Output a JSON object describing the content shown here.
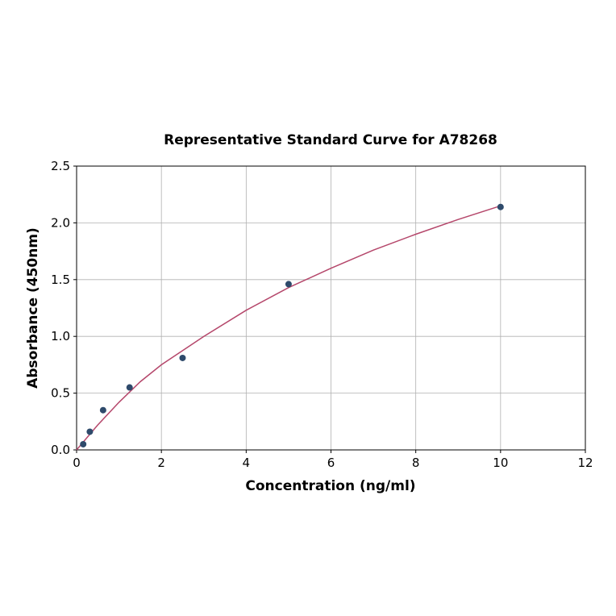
{
  "chart_data": {
    "type": "scatter",
    "title": "Representative Standard Curve for A78268",
    "xlabel": "Concentration (ng/ml)",
    "ylabel": "Absorbance (450nm)",
    "xlim": [
      0,
      12
    ],
    "ylim": [
      0,
      2.5
    ],
    "xticks": [
      "0",
      "2",
      "4",
      "6",
      "8",
      "10",
      "12"
    ],
    "yticks": [
      "0.0",
      "0.5",
      "1.0",
      "1.5",
      "2.0",
      "2.5"
    ],
    "grid": true,
    "points": {
      "x": [
        0.156,
        0.312,
        0.625,
        1.25,
        2.5,
        5,
        10
      ],
      "y": [
        0.05,
        0.16,
        0.35,
        0.55,
        0.81,
        1.46,
        2.14
      ],
      "color": "#2e4a6b"
    },
    "fit_curve": {
      "x": [
        0,
        0.25,
        0.5,
        1,
        1.5,
        2,
        3,
        4,
        5,
        6,
        7,
        8,
        9,
        10
      ],
      "y": [
        0,
        0.11,
        0.22,
        0.42,
        0.6,
        0.75,
        1.0,
        1.23,
        1.43,
        1.6,
        1.76,
        1.9,
        2.03,
        2.15
      ],
      "color": "#b5476b"
    }
  }
}
